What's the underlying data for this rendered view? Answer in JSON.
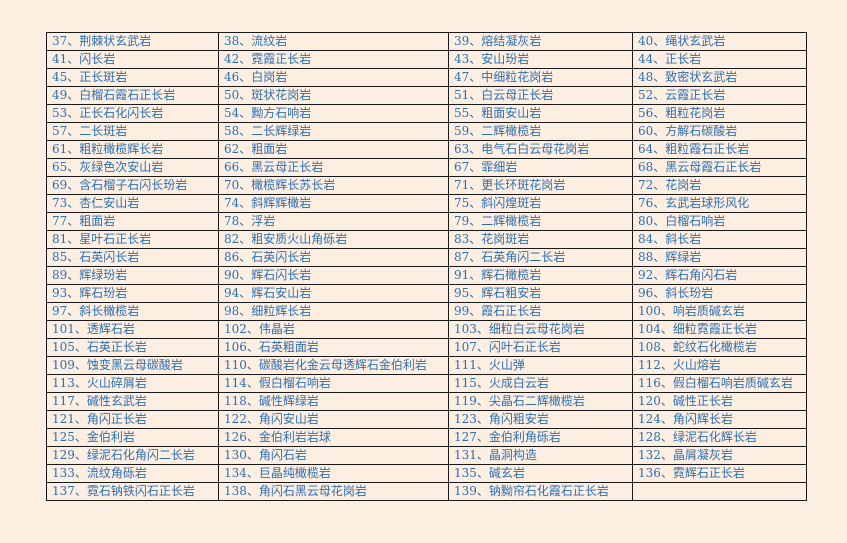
{
  "table": {
    "rows": [
      [
        "37、荆棘状玄武岩",
        "38、流纹岩",
        "39、熔结凝灰岩",
        "40、绳状玄武岩"
      ],
      [
        "41、闪长岩",
        "42、霓霞正长岩",
        "43、安山玢岩",
        "44、正长岩"
      ],
      [
        "45、正长斑岩",
        "46、白岗岩",
        "47、中细粒花岗岩",
        "48、致密状玄武岩"
      ],
      [
        "49、白榴石霞石正长岩",
        "50、斑状花岗岩",
        "51、白云母正长岩",
        "52、云霞正长岩"
      ],
      [
        "53、正长石化闪长岩",
        "54、黝方石响岩",
        "55、粗面安山岩",
        "56、粗粒花岗岩"
      ],
      [
        "57、二长斑岩",
        "58、二长辉绿岩",
        "59、二辉橄榄岩",
        "60、方解石碳酸岩"
      ],
      [
        "61、粗粒橄榄辉长岩",
        "62、粗面岩",
        "63、电气石白云母花岗岩",
        "64、粗粒霞石正长岩"
      ],
      [
        "65、灰绿色次安山岩",
        "66、黑云母正长岩",
        "67、霏细岩",
        "68、黑云母霞石正长岩"
      ],
      [
        "69、含石榴子石闪长玢岩",
        "70、橄榄辉长苏长岩",
        "71、更长环斑花岗岩",
        "72、花岗岩"
      ],
      [
        "73、杏仁安山岩",
        "74、斜辉辉橄岩",
        "75、斜闪煌斑岩",
        "76、玄武岩球形风化"
      ],
      [
        "77、粗面岩",
        "78、浮岩",
        "79、二辉橄榄岩",
        "80、白榴石响岩"
      ],
      [
        "81、星叶石正长岩",
        "82、粗安质火山角砾岩",
        "83、花岗斑岩",
        "84、斜长岩"
      ],
      [
        "85、石英闪长岩",
        "86、石英闪长岩",
        "87、石英角闪二长岩",
        "88、辉绿岩"
      ],
      [
        "89、辉绿玢岩",
        "90、辉石闪长岩",
        "91、辉石橄榄岩",
        "92、辉石角闪石岩"
      ],
      [
        "93、辉石玢岩",
        "94、辉石安山岩",
        "95、辉石粗安岩",
        "96、斜长玢岩"
      ],
      [
        "97、斜长橄榄岩",
        "98、细粒辉长岩",
        "99、霞石正长岩",
        "100、响岩质碱玄岩"
      ],
      [
        "101、透辉石岩",
        "102、伟晶岩",
        "103、细粒白云母花岗岩",
        "104、细粒霓霞正长岩"
      ],
      [
        "105、石英正长岩",
        "106、石英粗面岩",
        "107、闪叶石正长岩",
        "108、蛇纹石化橄榄岩"
      ],
      [
        "109、蚀变黑云母碳酸岩",
        "110、碳酸岩化金云母透辉石金伯利岩",
        "111、火山弹",
        "112、火山熔岩"
      ],
      [
        "113、火山碎屑岩",
        "114、假白榴石响岩",
        "115、火成白云岩",
        "116、假白榴石响岩质碱玄岩"
      ],
      [
        "117、碱性玄武岩",
        "118、碱性辉绿岩",
        "119、尖晶石二辉橄榄岩",
        "120、碱性正长岩"
      ],
      [
        "121、角闪正长岩",
        "122、角闪安山岩",
        "123、角闪粗安岩",
        "124、角闪辉长岩"
      ],
      [
        "125、金伯利岩",
        "126、金伯利岩岩球",
        "127、金伯利角砾岩",
        "128、绿泥石化辉长岩"
      ],
      [
        "129、绿泥石化角闪二长岩",
        "130、角闪石岩",
        "131、晶洞构造",
        "132、晶屑凝灰岩"
      ],
      [
        "133、流纹角砾岩",
        "134、巨晶纯橄榄岩",
        "135、碱玄岩",
        "136、霓辉石正长岩"
      ],
      [
        "137、霓石钠铁闪石正长岩",
        "138、角闪石黑云母花岗岩",
        "139、钠黝帘石化霞石正长岩",
        ""
      ]
    ]
  }
}
